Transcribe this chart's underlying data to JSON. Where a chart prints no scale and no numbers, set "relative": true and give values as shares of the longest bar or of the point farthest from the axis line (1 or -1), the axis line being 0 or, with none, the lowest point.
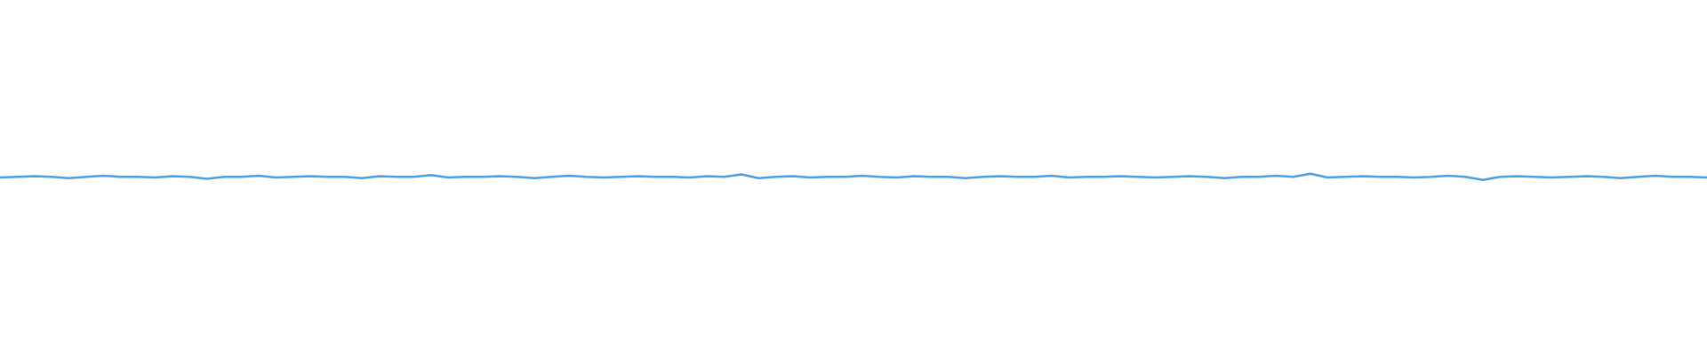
{
  "chart_data": {
    "type": "line",
    "relative": true,
    "color": "#4a9fe0",
    "marker": "none",
    "categories": [
      null,
      null,
      null,
      null,
      null,
      null,
      null,
      null,
      null,
      null,
      null,
      null,
      null,
      null,
      null,
      null,
      null,
      null,
      null,
      null,
      null,
      null,
      null,
      null,
      null,
      null,
      null,
      null,
      null,
      null,
      null,
      null,
      null,
      null,
      null,
      null,
      null,
      null,
      null,
      null,
      null,
      null,
      null,
      null,
      null,
      null,
      null,
      null,
      null,
      null,
      null,
      null,
      null,
      null,
      null,
      null,
      null,
      null,
      null,
      null,
      null,
      null,
      null,
      null,
      null,
      null,
      null,
      null,
      null,
      null,
      null,
      null,
      null,
      null,
      null,
      null,
      null,
      null,
      null,
      null,
      null,
      null,
      null,
      null,
      null,
      null,
      null,
      null,
      null,
      null,
      null,
      null,
      null,
      null,
      null,
      null,
      null,
      null,
      null,
      null
    ],
    "values": [
      0.4,
      0.5,
      0.6,
      0.5,
      0.3,
      0.5,
      0.7,
      0.5,
      0.5,
      0.4,
      0.6,
      0.5,
      0.2,
      0.5,
      0.5,
      0.7,
      0.4,
      0.5,
      0.6,
      0.5,
      0.5,
      0.3,
      0.6,
      0.5,
      0.5,
      0.8,
      0.4,
      0.5,
      0.5,
      0.6,
      0.5,
      0.3,
      0.5,
      0.7,
      0.5,
      0.4,
      0.5,
      0.6,
      0.5,
      0.5,
      0.4,
      0.6,
      0.5,
      0.9,
      0.3,
      0.5,
      0.6,
      0.4,
      0.5,
      0.5,
      0.7,
      0.5,
      0.4,
      0.6,
      0.5,
      0.5,
      0.3,
      0.5,
      0.6,
      0.5,
      0.5,
      0.7,
      0.4,
      0.5,
      0.5,
      0.6,
      0.5,
      0.4,
      0.5,
      0.6,
      0.5,
      0.3,
      0.5,
      0.5,
      0.7,
      0.5,
      1,
      0.4,
      0.5,
      0.6,
      0.5,
      0.5,
      0.4,
      0.5,
      0.7,
      0.5,
      0.0,
      0.5,
      0.6,
      0.5,
      0.4,
      0.5,
      0.6,
      0.5,
      0.3,
      0.5,
      0.7,
      0.5,
      0.5,
      0.4
    ]
  }
}
